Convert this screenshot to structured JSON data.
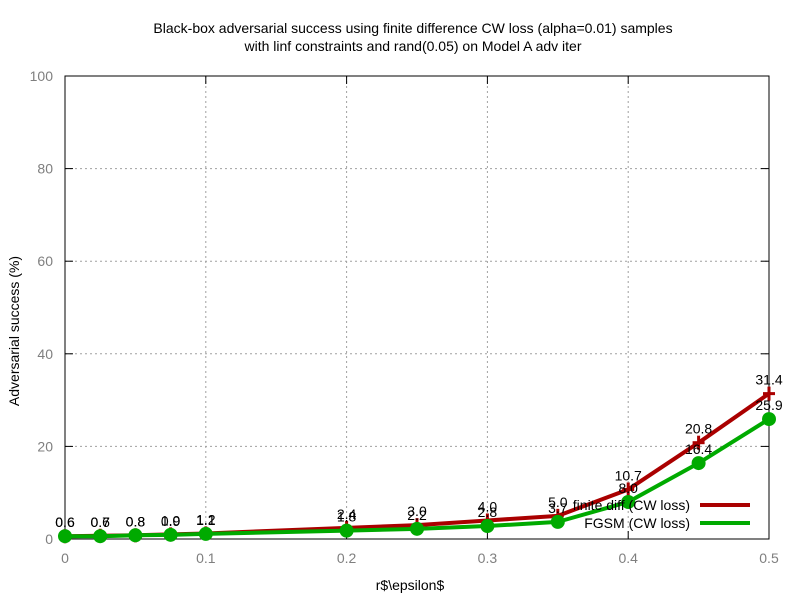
{
  "chart_data": {
    "type": "line",
    "title": [
      "Black-box adversarial success using finite difference CW loss (alpha=0.01) samples",
      "with linf constraints and rand(0.05) on Model A adv iter"
    ],
    "xlabel": "r$\\epsilon$",
    "ylabel": "Adversarial success (%)",
    "xlim": [
      0,
      0.5
    ],
    "ylim": [
      0,
      100
    ],
    "xticks": [
      "0",
      "0.1",
      "0.2",
      "0.3",
      "0.4",
      "0.5"
    ],
    "yticks": [
      "0",
      "20",
      "40",
      "60",
      "80",
      "100"
    ],
    "grid": true,
    "legend_position": "right, inside plot near bottom",
    "series": [
      {
        "name": "finite diff (CW loss)",
        "color": "#aa0000",
        "marker": "plus",
        "x": [
          0,
          0.025,
          0.05,
          0.075,
          0.1,
          0.2,
          0.25,
          0.3,
          0.35,
          0.4,
          0.45,
          0.5
        ],
        "y": [
          0.6,
          0.7,
          0.8,
          1.0,
          1.2,
          2.4,
          3.0,
          4.0,
          5.0,
          10.7,
          20.8,
          31.4
        ],
        "labels": [
          "0.6",
          "0.7",
          "0.8",
          "1.0",
          "1.2",
          "2.4",
          "3.0",
          "4.0",
          "5.0",
          "10.7",
          "20.8",
          "31.4"
        ]
      },
      {
        "name": "FGSM (CW loss)",
        "color": "#00aa00",
        "marker": "circle",
        "x": [
          0,
          0.025,
          0.05,
          0.075,
          0.1,
          0.2,
          0.25,
          0.3,
          0.35,
          0.4,
          0.45,
          0.5
        ],
        "y": [
          0.6,
          0.6,
          0.8,
          0.9,
          1.1,
          1.8,
          2.2,
          2.8,
          3.7,
          8.0,
          16.4,
          25.9
        ],
        "labels": [
          "0.6",
          "0.6",
          "0.8",
          "0.9",
          "1.1",
          "1.8",
          "2.2",
          "2.8",
          "3.7",
          "8.0",
          "16.4",
          "25.9"
        ]
      }
    ]
  }
}
